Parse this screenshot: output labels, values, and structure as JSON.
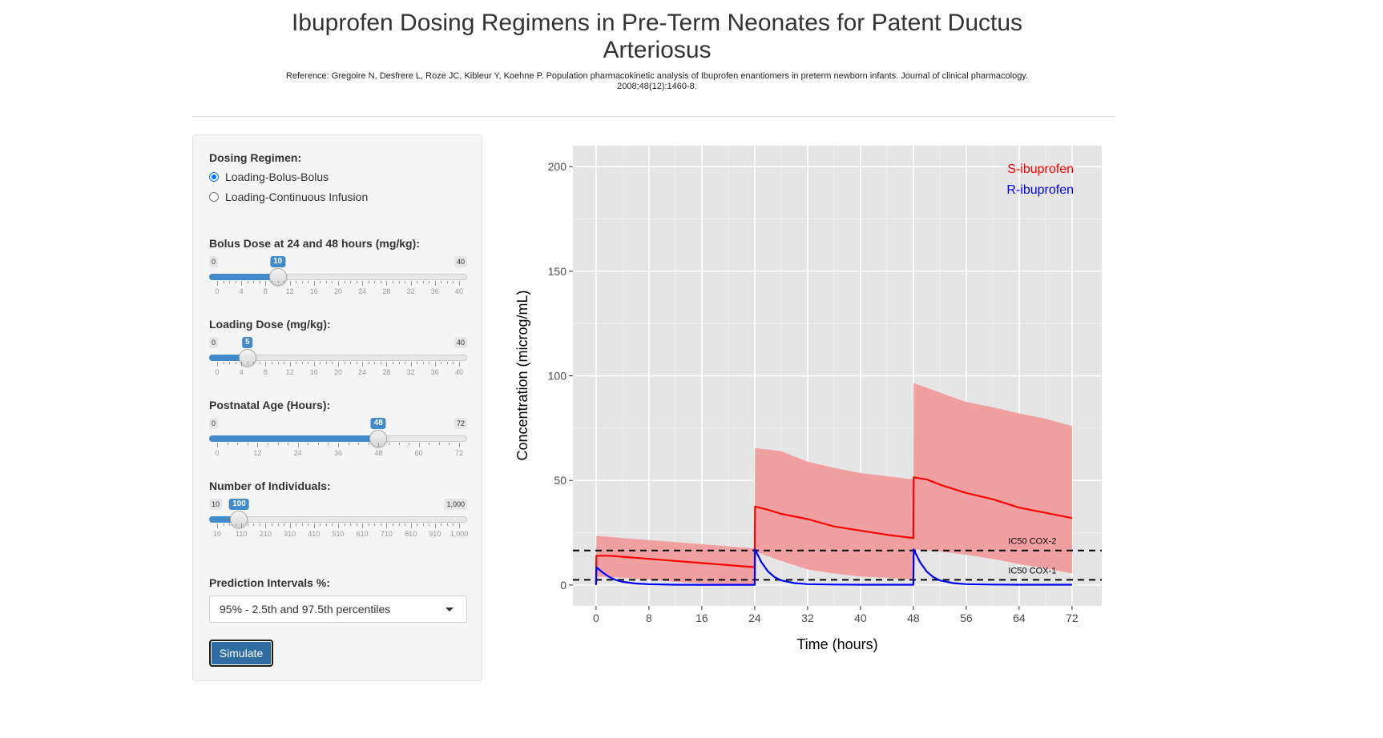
{
  "page": {
    "title": "Ibuprofen Dosing Regimens in Pre-Term Neonates for Patent Ductus Arteriosus",
    "reference": "Reference: Gregoire N, Desfrere L, Roze JC, Kibleur Y, Koehne P. Population pharmacokinetic analysis of Ibuprofen enantiomers in preterm newborn infants. Journal of clinical pharmacology. 2008;48(12):1460-8."
  },
  "sidebar": {
    "dosing_regimen": {
      "label": "Dosing Regimen:",
      "options": [
        "Loading-Bolus-Bolus",
        "Loading-Continuous Infusion"
      ],
      "selected": 0
    },
    "bolus_dose": {
      "label": "Bolus Dose at 24 and 48 hours (mg/kg):",
      "min": 0,
      "max": 40,
      "value": 10,
      "min_label": "0",
      "max_label": "40",
      "value_label": "10",
      "ticks": [
        "0",
        "4",
        "8",
        "12",
        "16",
        "20",
        "24",
        "28",
        "32",
        "36",
        "40"
      ]
    },
    "loading_dose": {
      "label": "Loading Dose (mg/kg):",
      "min": 0,
      "max": 40,
      "value": 5,
      "min_label": "0",
      "max_label": "40",
      "value_label": "5",
      "ticks": [
        "0",
        "4",
        "8",
        "12",
        "16",
        "20",
        "24",
        "28",
        "32",
        "36",
        "40"
      ]
    },
    "postnatal_age": {
      "label": "Postnatal Age (Hours):",
      "min": 0,
      "max": 72,
      "value": 48,
      "min_label": "0",
      "max_label": "72",
      "value_label": "48",
      "ticks": [
        "0",
        "12",
        "24",
        "36",
        "48",
        "60",
        "72"
      ]
    },
    "num_individuals": {
      "label": "Number of Individuals:",
      "min": 10,
      "max": 1000,
      "value": 100,
      "min_label": "10",
      "max_label": "1,000",
      "value_label": "100",
      "ticks": [
        "10",
        "110",
        "210",
        "310",
        "410",
        "510",
        "610",
        "710",
        "810",
        "910",
        "1,000"
      ]
    },
    "prediction_intervals": {
      "label": "Prediction Intervals %:",
      "selected": "95% - 2.5th and 97.5th percentiles"
    },
    "simulate_label": "Simulate"
  },
  "chart_data": {
    "type": "line",
    "xlabel": "Time (hours)",
    "ylabel": "Concentration (microg/mL)",
    "xlim": [
      -3.5,
      76.5
    ],
    "ylim": [
      -10,
      210
    ],
    "xticks": [
      0,
      8,
      16,
      24,
      32,
      40,
      48,
      56,
      64,
      72
    ],
    "yticks": [
      0,
      50,
      100,
      150,
      200
    ],
    "legend_position": "top-right",
    "colors": {
      "s": "#ff0000",
      "r": "#0000ff",
      "band": "#f0a0a0",
      "panel": "#e5e5e5"
    },
    "hlines": [
      {
        "y": 16.5,
        "label": "IC50 COX-2"
      },
      {
        "y": 2.5,
        "label": "IC50 COX-1"
      }
    ],
    "series": [
      {
        "name": "S-ibuprofen",
        "color": "#ff0000",
        "x": [
          0,
          0.05,
          2,
          4,
          8,
          12,
          16,
          20,
          23.95,
          24,
          24.05,
          26,
          28,
          32,
          36,
          40,
          44,
          47.95,
          48,
          48.05,
          50,
          52,
          56,
          60,
          64,
          68,
          72
        ],
        "values": [
          0,
          14,
          14,
          13.5,
          12.5,
          11.5,
          10.5,
          9.5,
          8.5,
          8.5,
          37.5,
          36,
          34,
          31.5,
          28,
          26,
          24,
          22.5,
          22.5,
          51.5,
          50.5,
          48,
          44,
          41,
          37,
          34.5,
          32
        ]
      },
      {
        "name": "R-ibuprofen",
        "color": "#0000ff",
        "x": [
          0,
          0.05,
          1,
          2,
          3,
          4,
          6,
          8,
          12,
          16,
          20,
          23.95,
          24,
          24.05,
          25,
          26,
          27,
          28,
          30,
          32,
          36,
          40,
          44,
          47.95,
          48,
          48.05,
          49,
          50,
          51,
          52,
          54,
          56,
          60,
          64,
          68,
          72
        ],
        "values": [
          0,
          8.5,
          6,
          3.8,
          2.4,
          1.5,
          0.7,
          0.35,
          0.15,
          0.1,
          0.1,
          0.1,
          0.1,
          17,
          11,
          6.5,
          3.8,
          2.2,
          0.9,
          0.4,
          0.2,
          0.15,
          0.15,
          0.15,
          0.15,
          17,
          11,
          6.5,
          3.8,
          2.2,
          0.9,
          0.4,
          0.2,
          0.15,
          0.15,
          0.15
        ]
      }
    ],
    "band": {
      "x": [
        0,
        0.05,
        4,
        8,
        12,
        16,
        20,
        23.95,
        24,
        24.05,
        28,
        32,
        36,
        40,
        44,
        47.95,
        48,
        48.05,
        52,
        56,
        60,
        64,
        68,
        72
      ],
      "upper": [
        0,
        23.5,
        22.5,
        21.5,
        20.5,
        19.5,
        18.5,
        17.5,
        17.5,
        65.5,
        64,
        59,
        56,
        53.5,
        52,
        50.5,
        50.5,
        96.5,
        92,
        87.5,
        85,
        82,
        79.5,
        76
      ],
      "lower": [
        0,
        4,
        3.5,
        2.5,
        1.5,
        0.8,
        0.4,
        0,
        0,
        16,
        11.5,
        7.5,
        5.5,
        4,
        3.5,
        2.5,
        2.5,
        17,
        16,
        14.5,
        12.5,
        10,
        8,
        5.5
      ]
    }
  }
}
